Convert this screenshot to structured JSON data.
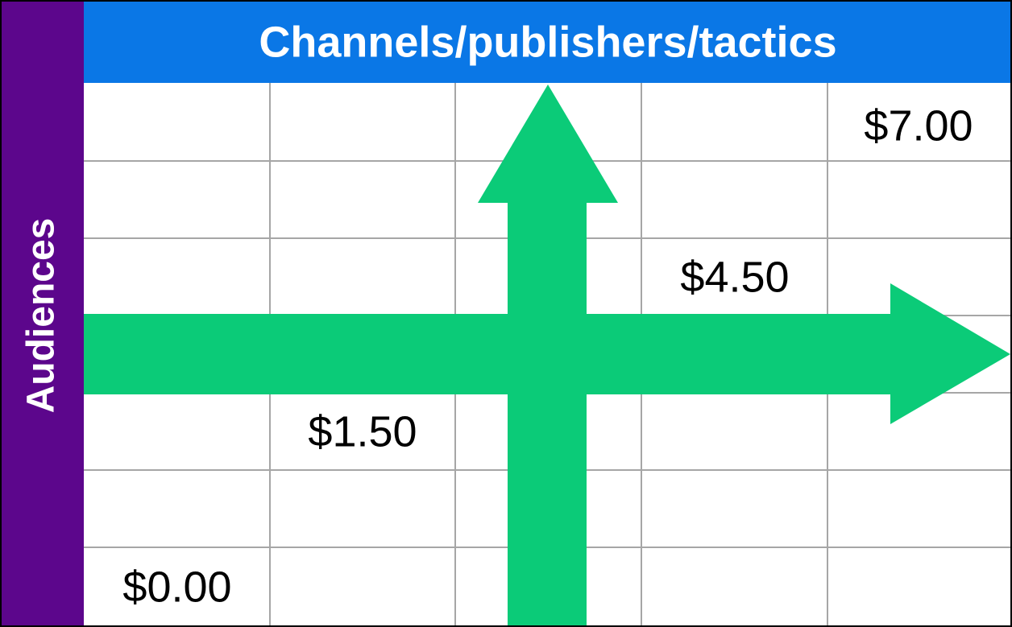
{
  "header": {
    "title": "Channels/publishers/tactics"
  },
  "side": {
    "label": "Audiences"
  },
  "price_labels": [
    "$7.00",
    "$4.50",
    "$1.50",
    "$0.00"
  ]
}
